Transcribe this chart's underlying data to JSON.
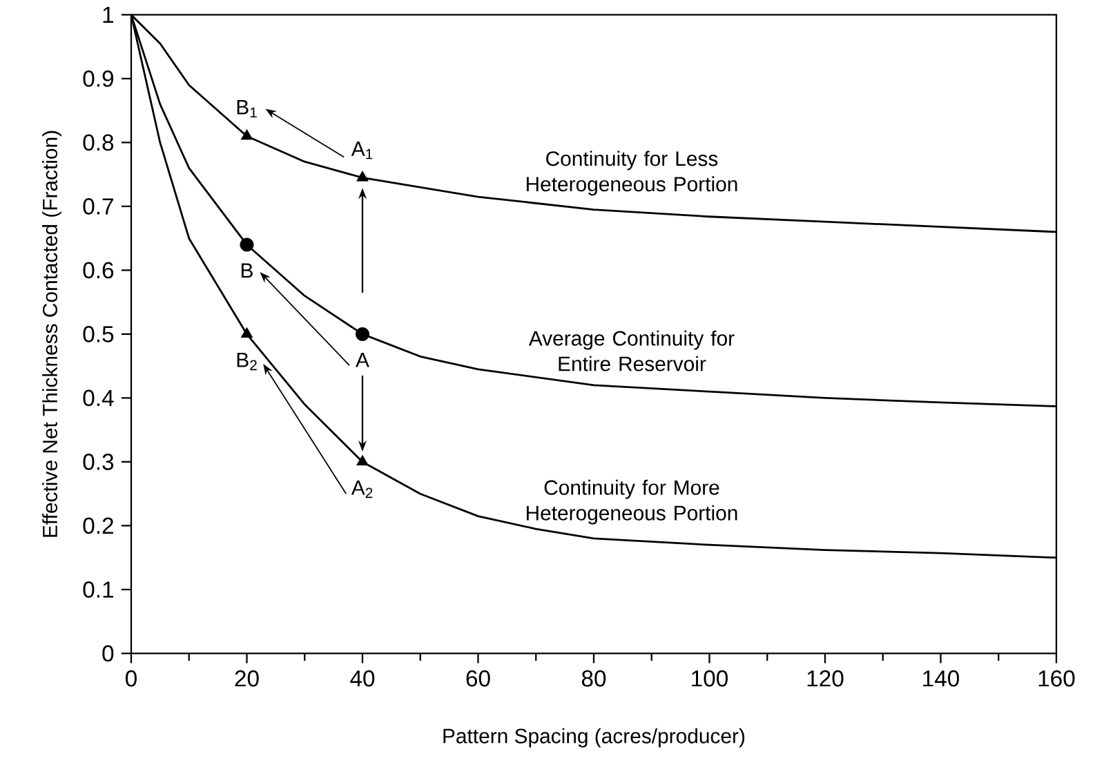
{
  "chart_data": {
    "type": "line",
    "xlabel": "Pattern Spacing (acres/producer)",
    "ylabel": "Effective Net Thickness Contacted (Fraction)",
    "xlim": [
      0,
      160
    ],
    "ylim": [
      0,
      1
    ],
    "xticks": [
      0,
      20,
      40,
      60,
      80,
      100,
      120,
      140,
      160
    ],
    "yticks": [
      0,
      {
        "value": 0.1,
        "label": "0.1"
      },
      {
        "value": 0.2,
        "label": "0.2"
      },
      {
        "value": 0.3,
        "label": "0.3"
      },
      {
        "value": 0.4,
        "label": "0.4"
      },
      {
        "value": 0.5,
        "label": "0.5"
      },
      {
        "value": 0.6,
        "label": "0.6"
      },
      {
        "value": 0.7,
        "label": "0.7"
      },
      {
        "value": 0.8,
        "label": "0.8"
      },
      {
        "value": 0.9,
        "label": "0.9"
      },
      1
    ],
    "grid": false,
    "legend": false,
    "line_style": "solid",
    "series": [
      {
        "name": "Continuity for Less\nHeterogeneous Portion",
        "color": "#000000",
        "marker": "none",
        "x": [
          0,
          5,
          10,
          20,
          30,
          40,
          60,
          80,
          100,
          120,
          140,
          160
        ],
        "values": [
          1,
          0.955,
          0.89,
          0.81,
          0.77,
          0.745,
          0.715,
          0.695,
          0.684,
          0.676,
          0.668,
          0.66
        ]
      },
      {
        "name": "Average Continuity for\nEntire Reservoir",
        "color": "#000000",
        "marker": "none",
        "x": [
          0,
          5,
          10,
          20,
          30,
          40,
          50,
          60,
          80,
          100,
          120,
          140,
          160
        ],
        "values": [
          1,
          0.86,
          0.76,
          0.64,
          0.56,
          0.5,
          0.465,
          0.445,
          0.42,
          0.41,
          0.4,
          0.393,
          0.387
        ]
      },
      {
        "name": "Continuity for More\nHeterogeneous Portion",
        "color": "#000000",
        "marker": "none",
        "x": [
          0,
          5,
          10,
          20,
          30,
          40,
          50,
          60,
          70,
          80,
          100,
          120,
          140,
          160
        ],
        "values": [
          1,
          0.8,
          0.65,
          0.5,
          0.39,
          0.3,
          0.25,
          0.215,
          0.195,
          0.18,
          0.17,
          0.162,
          0.157,
          0.15
        ]
      },
      {
        "type": "scatter",
        "color": "#000000",
        "marker": "triangle",
        "x": [
          20,
          40
        ],
        "values": [
          0.81,
          0.745
        ]
      },
      {
        "type": "scatter",
        "color": "#000000",
        "marker": "circle",
        "x": [
          20,
          40
        ],
        "values": [
          0.64,
          0.5
        ]
      },
      {
        "type": "scatter",
        "color": "#000000",
        "marker": "triangle",
        "x": [
          20,
          40
        ],
        "values": [
          0.5,
          0.3
        ]
      }
    ],
    "annotations": [
      "B$_{1}$",
      "A$_{1}$",
      "B",
      "A",
      "B$_{2}$",
      "A$_{2}$"
    ]
  }
}
